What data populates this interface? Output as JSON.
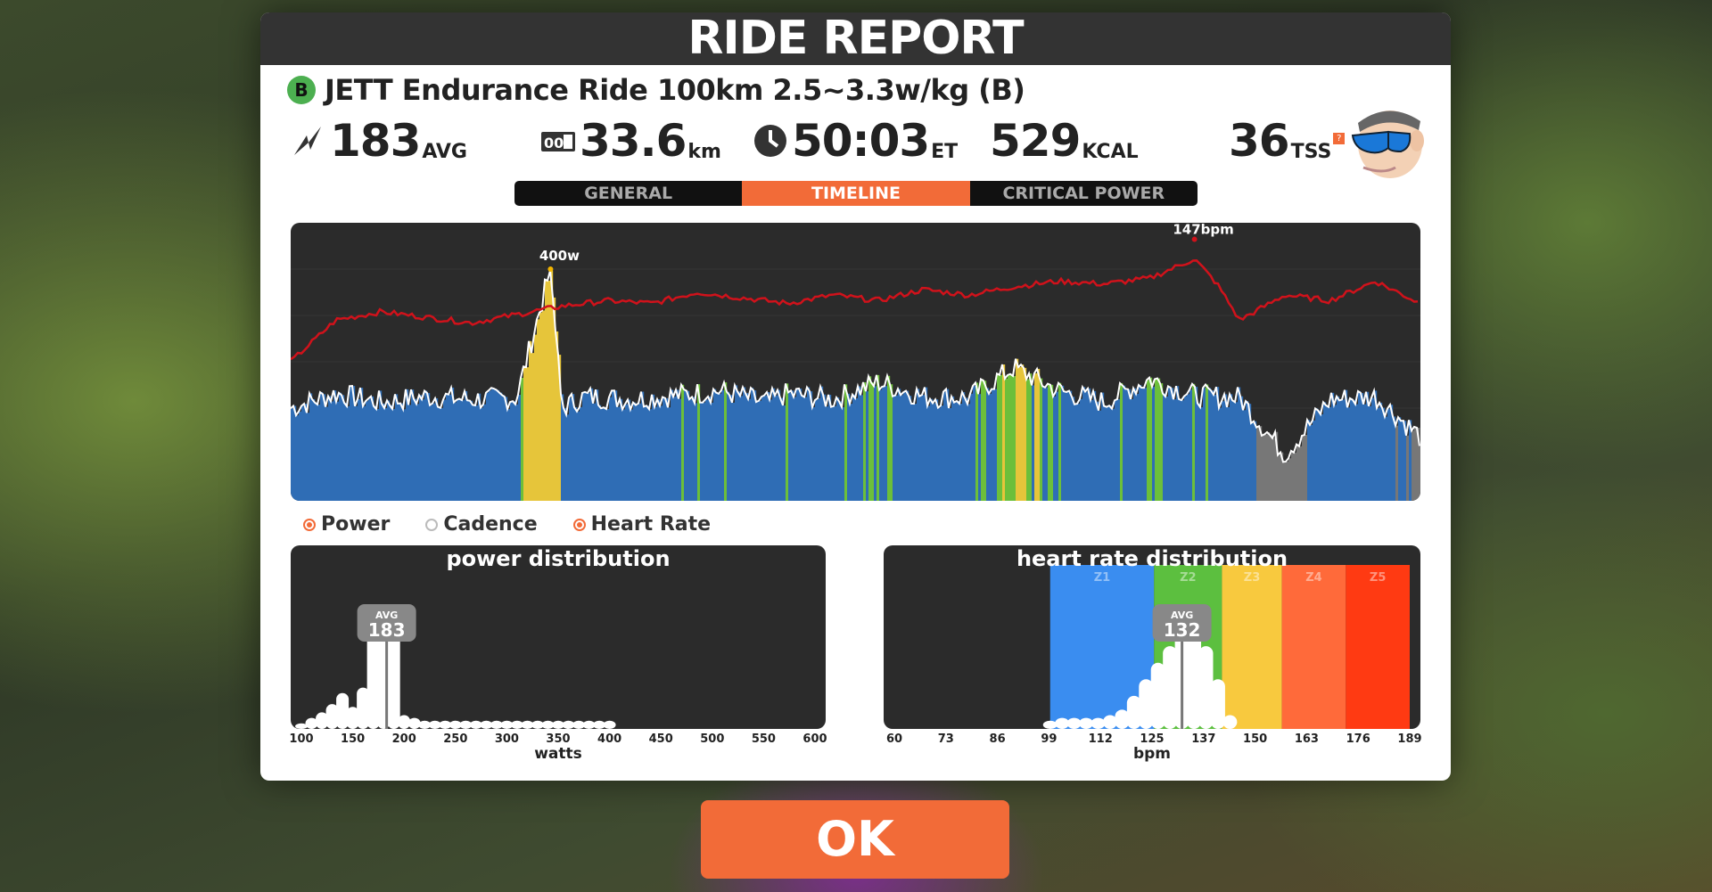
{
  "title": "RIDE REPORT",
  "ride": {
    "category": "B",
    "name": "JETT Endurance Ride 100km 2.5~3.3w/kg (B)"
  },
  "stats": {
    "power": {
      "value": "183",
      "unit": "AVG",
      "icon": "lightning-icon"
    },
    "distance": {
      "value": "33.6",
      "unit": "km",
      "icon": "odometer-icon"
    },
    "time": {
      "value": "50:03",
      "unit": "ET",
      "icon": "clock-icon"
    },
    "calories": {
      "value": "529",
      "unit": "KCAL"
    },
    "tss": {
      "value": "36",
      "unit": "TSS",
      "help": "?"
    }
  },
  "tabs": [
    {
      "label": "GENERAL",
      "active": false
    },
    {
      "label": "TIMELINE",
      "active": true
    },
    {
      "label": "CRITICAL POWER",
      "active": false
    }
  ],
  "timeline": {
    "peak_power_label": "400w",
    "peak_hr_label": "147bpm",
    "colors": {
      "power_fill": "#2f6db5",
      "power_line": "#ffffff",
      "hr_line": "#d0121b",
      "z_gray": "#777777",
      "z_green": "#6cbf3a",
      "z_yellow": "#e6c53a"
    }
  },
  "legend": [
    {
      "label": "Power",
      "checked": true
    },
    {
      "label": "Cadence",
      "checked": false
    },
    {
      "label": "Heart Rate",
      "checked": true
    }
  ],
  "power_distribution": {
    "title": "power distribution",
    "avg_label": "AVG",
    "avg_value": "183",
    "xlabel": "watts",
    "ticks": [
      "100",
      "150",
      "200",
      "250",
      "300",
      "350",
      "400",
      "450",
      "500",
      "550",
      "600"
    ]
  },
  "hr_distribution": {
    "title": "heart rate distribution",
    "avg_label": "AVG",
    "avg_value": "132",
    "xlabel": "bpm",
    "ticks": [
      "60",
      "73",
      "86",
      "99",
      "112",
      "125",
      "137",
      "150",
      "163",
      "176",
      "189"
    ],
    "zones": [
      {
        "label": "Z1",
        "color": "#3a8df0"
      },
      {
        "label": "Z2",
        "color": "#5cbf3f"
      },
      {
        "label": "Z3",
        "color": "#f8c93e"
      },
      {
        "label": "Z4",
        "color": "#ff6a3a"
      },
      {
        "label": "Z5",
        "color": "#ff3a12"
      }
    ]
  },
  "ok_button": "OK",
  "chart_data": [
    {
      "type": "line",
      "title": "",
      "series": [
        {
          "name": "Power",
          "x": [
            0,
            2,
            4,
            6,
            8,
            10,
            11.5,
            12,
            13,
            15,
            17,
            19,
            21,
            22,
            24,
            26,
            28,
            30,
            32,
            34,
            36,
            38,
            40,
            42,
            44,
            46,
            48,
            50
          ],
          "y": [
            160,
            185,
            170,
            180,
            175,
            178,
            400,
            160,
            180,
            175,
            182,
            190,
            170,
            185,
            175,
            205,
            180,
            178,
            230,
            190,
            170,
            210,
            182,
            178,
            80,
            175,
            180,
            110
          ]
        },
        {
          "name": "Heart Rate",
          "x": [
            0,
            2,
            4,
            6,
            8,
            10,
            12,
            14,
            16,
            18,
            20,
            22,
            24,
            26,
            28,
            30,
            32,
            34,
            36,
            38,
            40,
            41,
            42,
            44,
            46,
            48,
            50
          ],
          "y": [
            110,
            125,
            128,
            126,
            124,
            127,
            130,
            132,
            131,
            135,
            133,
            131,
            134,
            132,
            136,
            134,
            137,
            139,
            138,
            140,
            147,
            138,
            125,
            134,
            132,
            139,
            131
          ]
        }
      ]
    },
    {
      "type": "bar",
      "title": "power distribution",
      "xlabel": "watts",
      "xlim": [
        100,
        600
      ],
      "x": [
        100,
        110,
        120,
        130,
        140,
        150,
        160,
        170,
        180,
        190,
        200,
        210,
        220,
        230,
        240,
        250,
        260,
        270,
        280,
        290,
        300,
        310,
        320,
        330,
        340,
        350,
        360,
        370,
        380,
        390,
        400
      ],
      "values": [
        2,
        4,
        6,
        9,
        13,
        8,
        15,
        40,
        38,
        42,
        5,
        4,
        3,
        3,
        3,
        3,
        3,
        3,
        3,
        3,
        3,
        3,
        3,
        3,
        3,
        3,
        3,
        3,
        3,
        3,
        3
      ],
      "avg": 183
    },
    {
      "type": "bar",
      "title": "heart rate distribution",
      "xlabel": "bpm",
      "xlim": [
        60,
        189
      ],
      "x": [
        99,
        102,
        105,
        108,
        111,
        114,
        117,
        120,
        123,
        126,
        129,
        132,
        135,
        138,
        141,
        144
      ],
      "values": [
        3,
        4,
        4,
        4,
        4,
        5,
        7,
        12,
        18,
        24,
        30,
        38,
        42,
        30,
        18,
        5
      ],
      "avg": 132
    }
  ]
}
